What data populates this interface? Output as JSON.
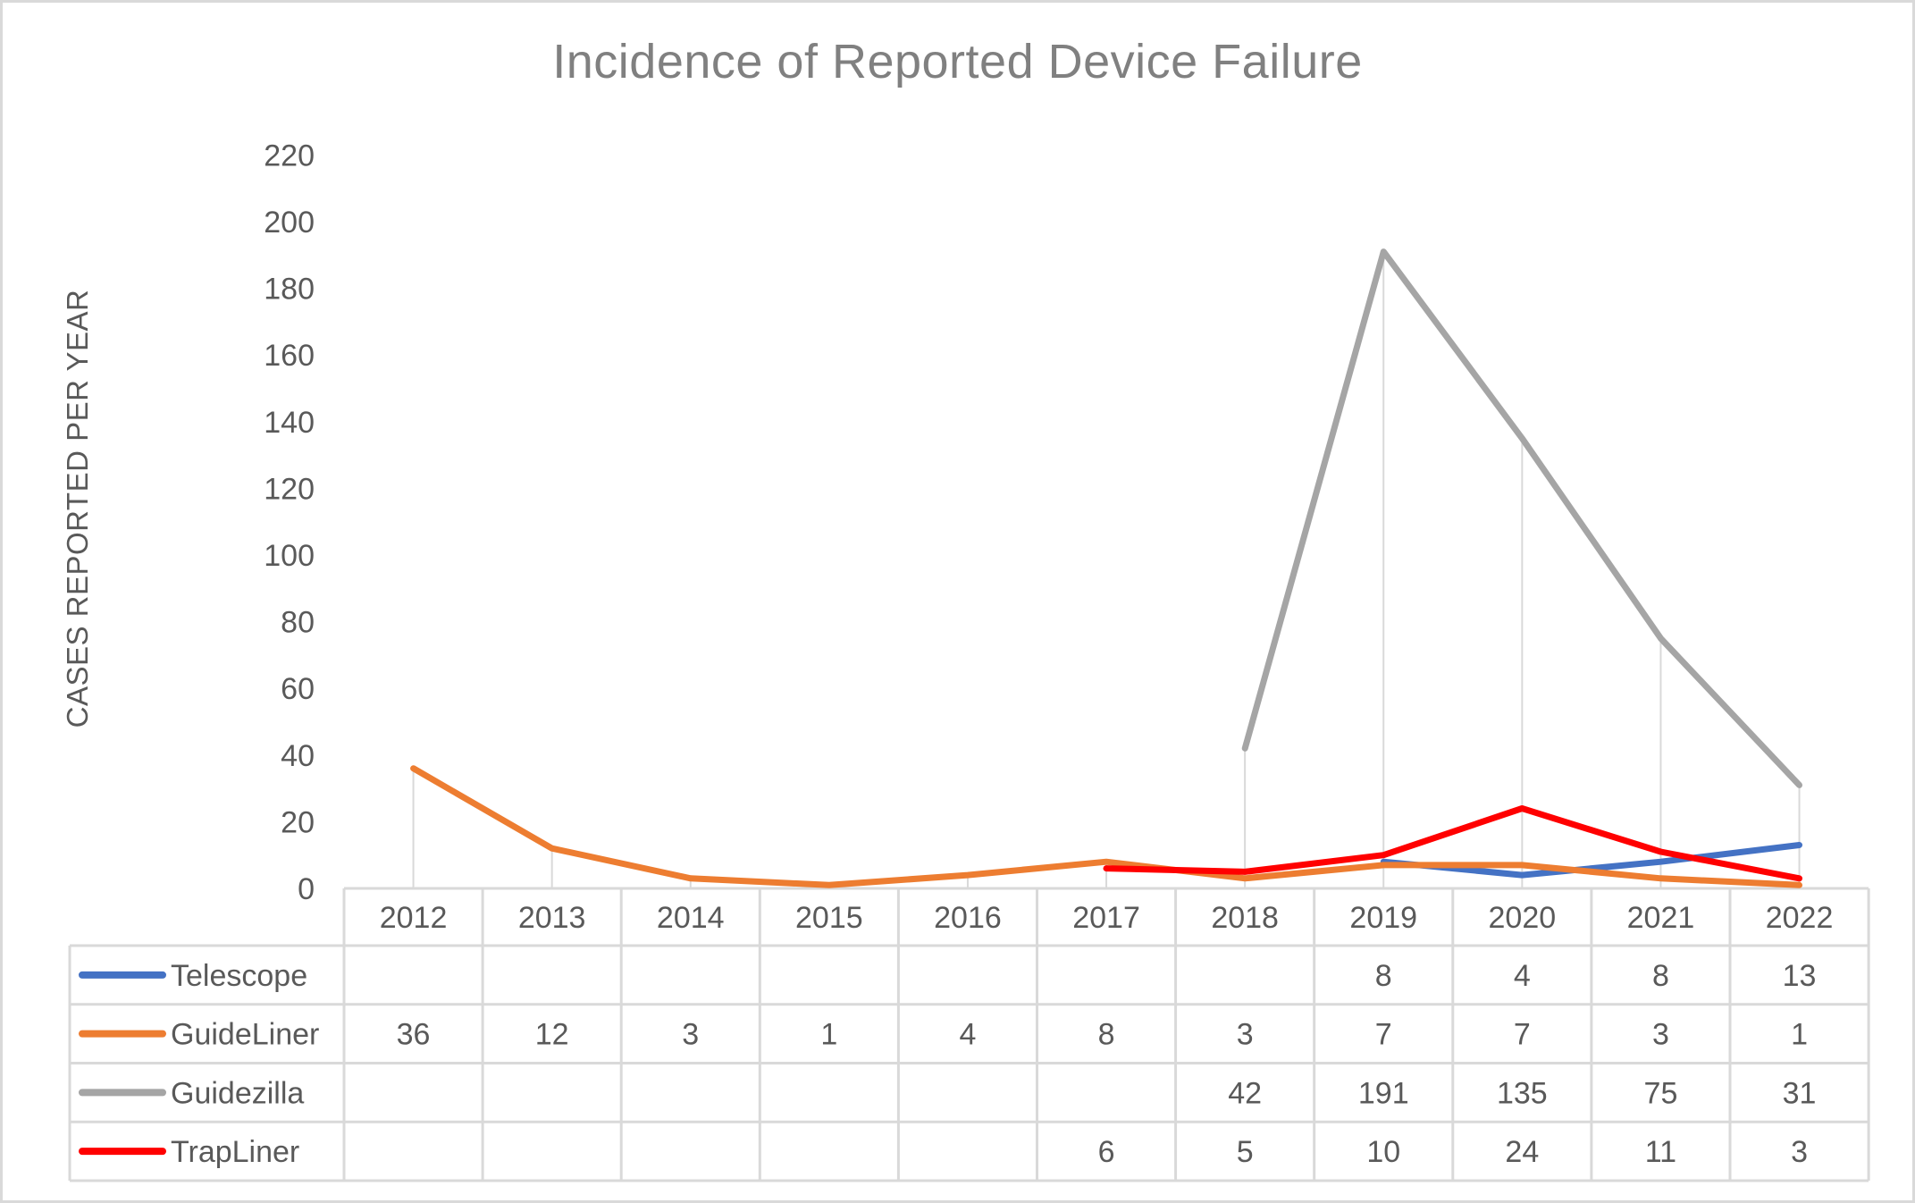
{
  "chart_data": {
    "type": "line",
    "title": "Incidence of Reported Device Failure",
    "xlabel": "",
    "ylabel": "CASES REPORTED PER YEAR",
    "ylim": [
      0,
      220
    ],
    "y_ticks": [
      0,
      20,
      40,
      60,
      80,
      100,
      120,
      140,
      160,
      180,
      200,
      220
    ],
    "grid": "vertical category lines",
    "legend_position": "data table below chart",
    "categories": [
      "2012",
      "2013",
      "2014",
      "2015",
      "2016",
      "2017",
      "2018",
      "2019",
      "2020",
      "2021",
      "2022"
    ],
    "series": [
      {
        "name": "Telescope",
        "color": "#4472c4",
        "values": [
          null,
          null,
          null,
          null,
          null,
          null,
          null,
          8,
          4,
          8,
          13
        ]
      },
      {
        "name": "GuideLiner",
        "color": "#ed7d31",
        "values": [
          36,
          12,
          3,
          1,
          4,
          8,
          3,
          7,
          7,
          3,
          1
        ]
      },
      {
        "name": "Guidezilla",
        "color": "#a5a5a5",
        "values": [
          null,
          null,
          null,
          null,
          null,
          null,
          42,
          191,
          135,
          75,
          31
        ]
      },
      {
        "name": "TrapLiner",
        "color": "#ff0000",
        "values": [
          null,
          null,
          null,
          null,
          null,
          6,
          5,
          10,
          24,
          11,
          3
        ]
      }
    ]
  },
  "colors": {
    "frame": "#d9d9d9",
    "grid": "#d9d9d9",
    "text": "#595959",
    "title": "#808080"
  }
}
